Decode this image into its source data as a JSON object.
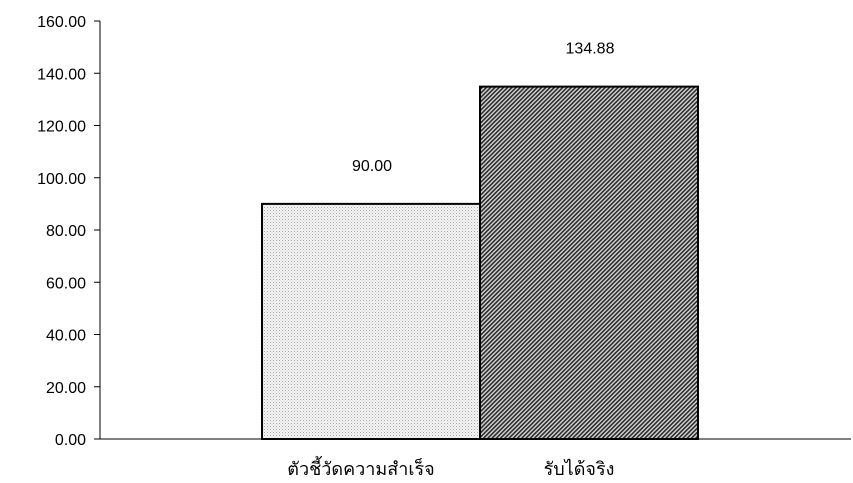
{
  "chart_data": {
    "type": "bar",
    "title": "",
    "xlabel": "",
    "ylabel": "",
    "categories": [
      "ตัวชี้วัดความสำเร็จ",
      "รับได้จริง"
    ],
    "values": [
      90.0,
      134.88
    ],
    "data_labels": [
      "90.00",
      "134.88"
    ],
    "ylim": [
      0,
      160
    ],
    "yticks": [
      0,
      20,
      40,
      60,
      80,
      100,
      120,
      140,
      160
    ],
    "ytick_labels": [
      "0.00",
      "20.00",
      "40.00",
      "60.00",
      "80.00",
      "100.00",
      "120.00",
      "140.00",
      "160.00"
    ],
    "grid": false,
    "legend": "none",
    "bar_fills": [
      "light-dotted",
      "dark-diagonal-hatch"
    ],
    "colors": {
      "axis": "#000000",
      "bar_outline": "#000000",
      "bar1_base": "#f2f2f2",
      "bar2_base": "#5a5a5a"
    }
  }
}
